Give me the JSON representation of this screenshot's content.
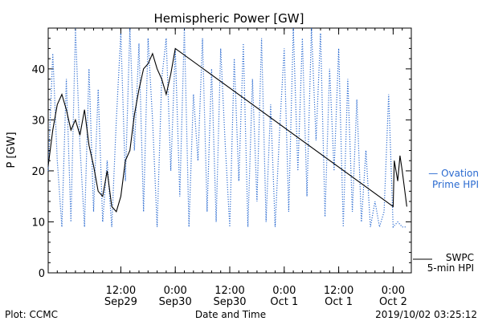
{
  "chart_data": {
    "type": "line",
    "title": "Hemispheric Power [GW]",
    "xlabel": "Date and Time",
    "ylabel": "P [GW]",
    "ylim": [
      0,
      48
    ],
    "xlim": [
      "2019-09-28T20:00",
      "2019-10-02T04:00"
    ],
    "grid": false,
    "legend_position": "right",
    "yticks": [
      0,
      10,
      20,
      30,
      40
    ],
    "xticks": [
      {
        "t": "2019-09-29T12:00",
        "line1": "12:00",
        "line2": "Sep29"
      },
      {
        "t": "2019-09-30T00:00",
        "line1": "0:00",
        "line2": "Sep30"
      },
      {
        "t": "2019-09-30T12:00",
        "line1": "12:00",
        "line2": "Sep30"
      },
      {
        "t": "2019-10-01T00:00",
        "line1": "0:00",
        "line2": "Oct 1"
      },
      {
        "t": "2019-10-01T12:00",
        "line1": "12:00",
        "line2": "Oct 1"
      },
      {
        "t": "2019-10-02T00:00",
        "line1": "0:00",
        "line2": "Oct 2"
      }
    ],
    "series": [
      {
        "name": "SWPC 5-min HPI",
        "color": "#000000",
        "style": "solid",
        "points": [
          [
            "2019-09-28T20:00",
            21
          ],
          [
            "2019-09-28T21:00",
            28
          ],
          [
            "2019-09-28T22:00",
            33
          ],
          [
            "2019-09-28T23:00",
            35
          ],
          [
            "2019-09-29T00:00",
            32
          ],
          [
            "2019-09-29T01:00",
            28
          ],
          [
            "2019-09-29T02:00",
            30
          ],
          [
            "2019-09-29T03:00",
            27
          ],
          [
            "2019-09-29T04:00",
            32
          ],
          [
            "2019-09-29T05:00",
            25
          ],
          [
            "2019-09-29T06:00",
            21
          ],
          [
            "2019-09-29T07:00",
            16
          ],
          [
            "2019-09-29T08:00",
            15
          ],
          [
            "2019-09-29T09:00",
            20
          ],
          [
            "2019-09-29T10:00",
            13
          ],
          [
            "2019-09-29T11:00",
            12
          ],
          [
            "2019-09-29T12:00",
            15
          ],
          [
            "2019-09-29T13:00",
            22
          ],
          [
            "2019-09-29T14:00",
            24
          ],
          [
            "2019-09-29T15:00",
            31
          ],
          [
            "2019-09-29T16:00",
            36
          ],
          [
            "2019-09-29T17:00",
            40
          ],
          [
            "2019-09-29T18:00",
            41
          ],
          [
            "2019-09-29T19:00",
            43
          ],
          [
            "2019-09-29T20:00",
            40
          ],
          [
            "2019-09-29T21:00",
            38
          ],
          [
            "2019-09-29T22:00",
            35
          ],
          [
            "2019-09-29T23:00",
            39
          ],
          [
            "2019-09-30T00:00",
            44
          ],
          [
            "2019-10-02T00:00",
            13
          ],
          [
            "2019-10-02T00:15",
            22
          ],
          [
            "2019-10-02T01:00",
            18
          ],
          [
            "2019-10-02T01:30",
            23
          ],
          [
            "2019-10-02T02:00",
            20
          ],
          [
            "2019-10-02T03:00",
            13
          ]
        ]
      },
      {
        "name": "Ovation Prime HPI",
        "color": "#2a6ad0",
        "style": "dotted",
        "points": [
          [
            "2019-09-28T20:00",
            20
          ],
          [
            "2019-09-28T21:00",
            43
          ],
          [
            "2019-09-28T22:00",
            22
          ],
          [
            "2019-09-28T23:00",
            9
          ],
          [
            "2019-09-29T00:00",
            38
          ],
          [
            "2019-09-29T01:00",
            10
          ],
          [
            "2019-09-29T02:00",
            48
          ],
          [
            "2019-09-29T03:00",
            25
          ],
          [
            "2019-09-29T04:00",
            9
          ],
          [
            "2019-09-29T05:00",
            40
          ],
          [
            "2019-09-29T06:00",
            12
          ],
          [
            "2019-09-29T07:00",
            36
          ],
          [
            "2019-09-29T08:00",
            10
          ],
          [
            "2019-09-29T09:00",
            22
          ],
          [
            "2019-09-29T10:00",
            9
          ],
          [
            "2019-09-29T11:00",
            30
          ],
          [
            "2019-09-29T12:00",
            47
          ],
          [
            "2019-09-29T13:00",
            18
          ],
          [
            "2019-09-29T14:00",
            48
          ],
          [
            "2019-09-29T15:00",
            24
          ],
          [
            "2019-09-29T16:00",
            45
          ],
          [
            "2019-09-29T17:00",
            12
          ],
          [
            "2019-09-29T18:00",
            46
          ],
          [
            "2019-09-29T19:00",
            30
          ],
          [
            "2019-09-29T20:00",
            9
          ],
          [
            "2019-09-29T21:00",
            38
          ],
          [
            "2019-09-29T22:00",
            46
          ],
          [
            "2019-09-29T23:00",
            20
          ],
          [
            "2019-09-30T00:00",
            44
          ],
          [
            "2019-09-30T01:00",
            15
          ],
          [
            "2019-09-30T02:00",
            48
          ],
          [
            "2019-09-30T03:00",
            9
          ],
          [
            "2019-09-30T04:00",
            35
          ],
          [
            "2019-09-30T05:00",
            22
          ],
          [
            "2019-09-30T06:00",
            46
          ],
          [
            "2019-09-30T07:00",
            12
          ],
          [
            "2019-09-30T08:00",
            40
          ],
          [
            "2019-09-30T09:00",
            10
          ],
          [
            "2019-09-30T10:00",
            44
          ],
          [
            "2019-09-30T11:00",
            25
          ],
          [
            "2019-09-30T12:00",
            9
          ],
          [
            "2019-09-30T13:00",
            42
          ],
          [
            "2019-09-30T14:00",
            18
          ],
          [
            "2019-09-30T15:00",
            45
          ],
          [
            "2019-09-30T16:00",
            9
          ],
          [
            "2019-09-30T17:00",
            38
          ],
          [
            "2019-09-30T18:00",
            14
          ],
          [
            "2019-09-30T19:00",
            46
          ],
          [
            "2019-09-30T20:00",
            10
          ],
          [
            "2019-09-30T21:00",
            33
          ],
          [
            "2019-09-30T22:00",
            9
          ],
          [
            "2019-09-30T23:00",
            28
          ],
          [
            "2019-10-01T00:00",
            44
          ],
          [
            "2019-10-01T01:00",
            12
          ],
          [
            "2019-10-01T02:00",
            48
          ],
          [
            "2019-10-01T03:00",
            20
          ],
          [
            "2019-10-01T04:00",
            46
          ],
          [
            "2019-10-01T05:00",
            15
          ],
          [
            "2019-10-01T06:00",
            48
          ],
          [
            "2019-10-01T07:00",
            26
          ],
          [
            "2019-10-01T08:00",
            47
          ],
          [
            "2019-10-01T09:00",
            11
          ],
          [
            "2019-10-01T10:00",
            40
          ],
          [
            "2019-10-01T11:00",
            20
          ],
          [
            "2019-10-01T12:00",
            44
          ],
          [
            "2019-10-01T13:00",
            9
          ],
          [
            "2019-10-01T14:00",
            38
          ],
          [
            "2019-10-01T15:00",
            12
          ],
          [
            "2019-10-01T16:00",
            34
          ],
          [
            "2019-10-01T17:00",
            10
          ],
          [
            "2019-10-01T18:00",
            24
          ],
          [
            "2019-10-01T19:00",
            9
          ],
          [
            "2019-10-01T20:00",
            14
          ],
          [
            "2019-10-01T21:00",
            9
          ],
          [
            "2019-10-01T22:00",
            12
          ],
          [
            "2019-10-01T23:00",
            35
          ],
          [
            "2019-10-02T00:00",
            9
          ],
          [
            "2019-10-02T01:00",
            10
          ],
          [
            "2019-10-02T02:00",
            9
          ],
          [
            "2019-10-02T03:00",
            9
          ]
        ]
      }
    ],
    "legend": {
      "ovation_line1": "— Ovation",
      "ovation_line2": "Prime HPI",
      "swpc_line1": "SWPC",
      "swpc_line2": "5-min HPI"
    },
    "footer": {
      "left": "Plot: CCMC",
      "center": "Date and Time",
      "right": "2019/10/02 03:25:12"
    }
  }
}
